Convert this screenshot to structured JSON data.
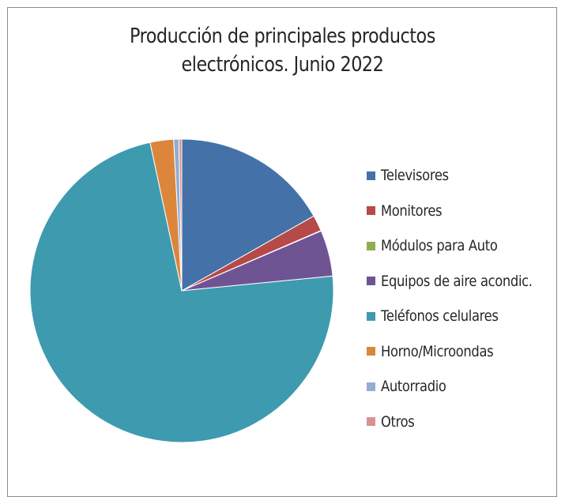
{
  "chart_data": {
    "type": "pie",
    "title_lines": [
      "Producción de principales productos",
      "electrónicos. Junio 2022"
    ],
    "legend_position": "right",
    "slices": [
      {
        "label": "Televisores",
        "value": 16.8,
        "color": "#4472a8"
      },
      {
        "label": "Monitores",
        "value": 1.7,
        "color": "#b54a48"
      },
      {
        "label": "Módulos para Auto",
        "value": 0.05,
        "color": "#8fae52"
      },
      {
        "label": "Equipos de aire acondic.",
        "value": 4.9,
        "color": "#6f5494"
      },
      {
        "label": "Teléfonos celulares",
        "value": 73.2,
        "color": "#3e9aaf"
      },
      {
        "label": "Horno/Microondas",
        "value": 2.5,
        "color": "#dc863c"
      },
      {
        "label": "Autorradio",
        "value": 0.55,
        "color": "#94acd3"
      },
      {
        "label": "Otros",
        "value": 0.3,
        "color": "#d89391"
      }
    ]
  }
}
